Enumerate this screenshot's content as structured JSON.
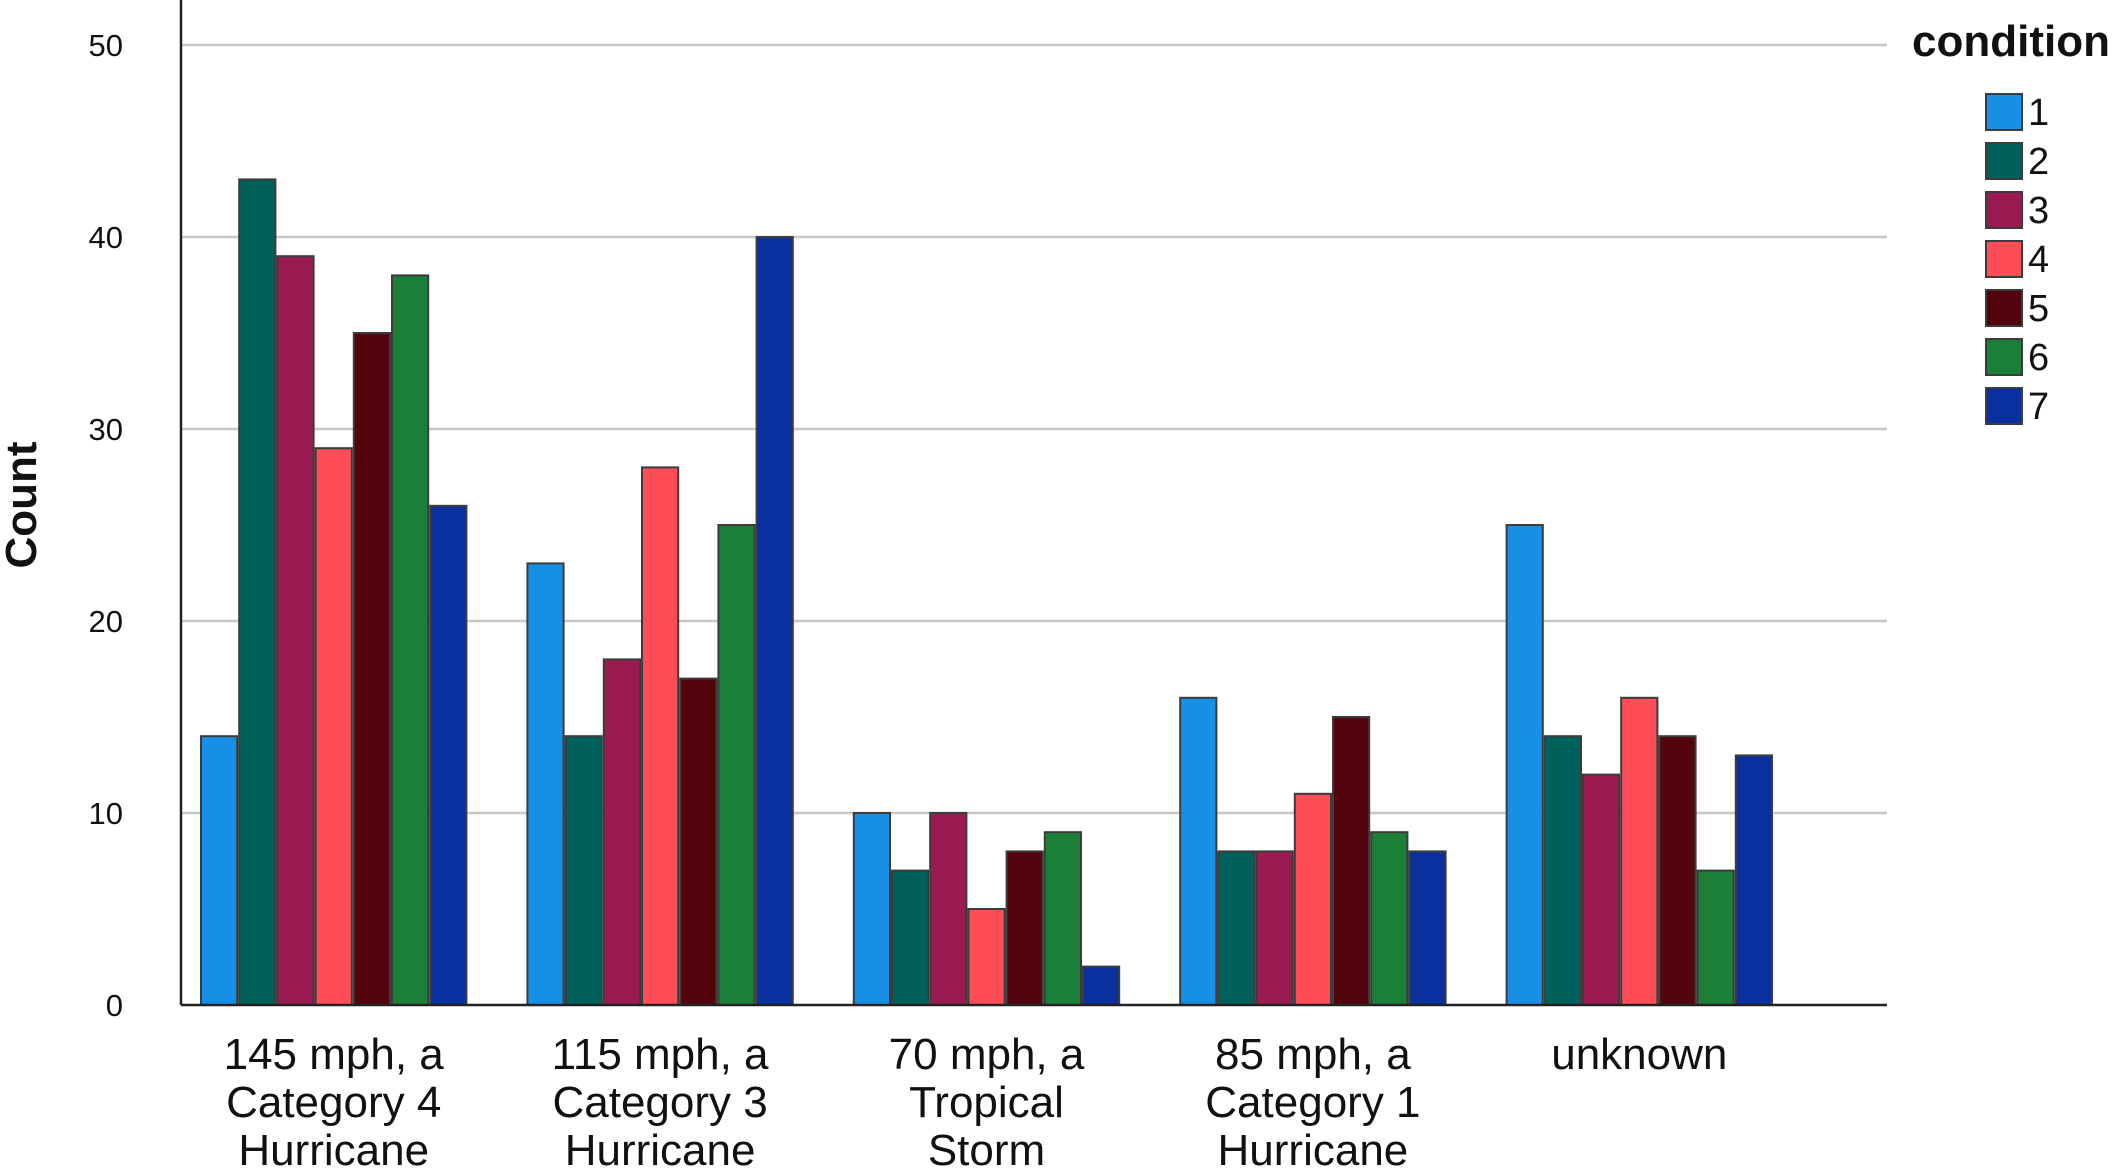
{
  "chart_data": {
    "type": "bar",
    "title": "",
    "xlabel": "",
    "ylabel": "Count",
    "ylim": [
      0,
      52
    ],
    "yticks": [
      0,
      10,
      20,
      30,
      40,
      50
    ],
    "grid": true,
    "legend_title": "condition",
    "legend_position": "top-right",
    "categories": [
      [
        "145 mph, a",
        "Category 4",
        "Hurricane"
      ],
      [
        "115 mph, a",
        "Category 3",
        "Hurricane"
      ],
      [
        "70 mph, a",
        "Tropical",
        "Storm"
      ],
      [
        "85 mph, a",
        "Category 1",
        "Hurricane"
      ],
      [
        "unknown"
      ]
    ],
    "series": [
      {
        "name": "1",
        "color": "#1590e6",
        "values": [
          14,
          23,
          10,
          16,
          25
        ]
      },
      {
        "name": "2",
        "color": "#00605b",
        "values": [
          43,
          14,
          7,
          8,
          14
        ]
      },
      {
        "name": "3",
        "color": "#9c1a52",
        "values": [
          39,
          18,
          10,
          8,
          12
        ]
      },
      {
        "name": "4",
        "color": "#ff4d58",
        "values": [
          29,
          28,
          5,
          11,
          16
        ]
      },
      {
        "name": "5",
        "color": "#54040c",
        "values": [
          35,
          17,
          8,
          15,
          14
        ]
      },
      {
        "name": "6",
        "color": "#1b7f37",
        "values": [
          38,
          25,
          9,
          9,
          7
        ]
      },
      {
        "name": "7",
        "color": "#0a2f9e",
        "values": [
          26,
          40,
          2,
          8,
          13
        ]
      }
    ]
  }
}
